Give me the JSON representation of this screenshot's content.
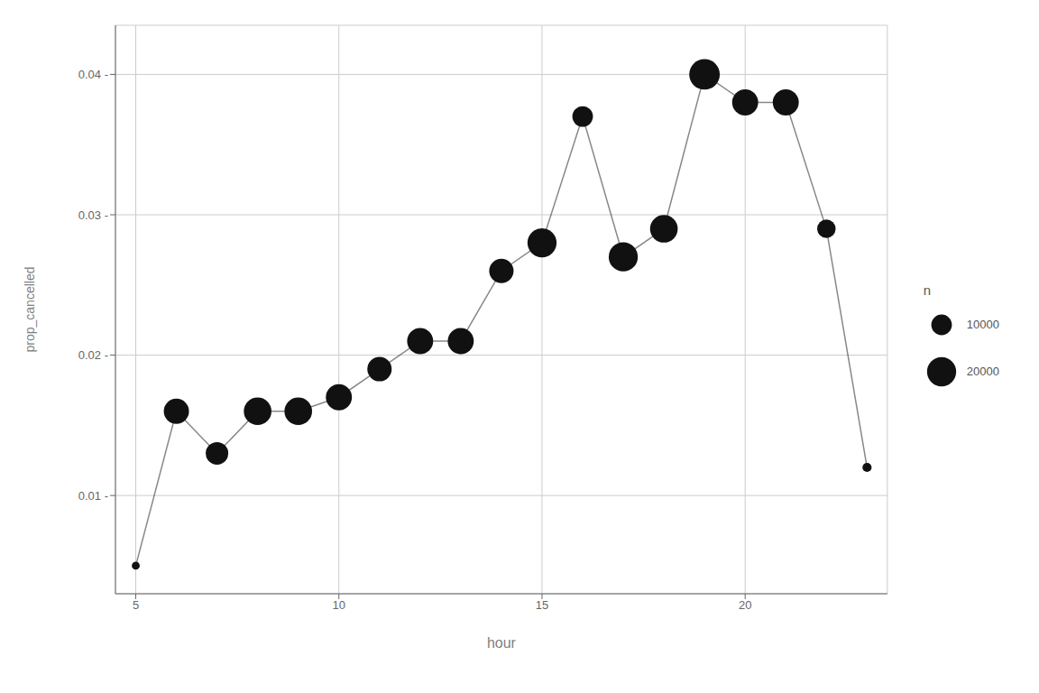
{
  "chart_data": {
    "type": "line",
    "marker": "circle",
    "x": [
      5,
      6,
      7,
      8,
      9,
      10,
      11,
      12,
      13,
      14,
      15,
      16,
      17,
      18,
      19,
      20,
      21,
      22,
      23
    ],
    "values": [
      0.005,
      0.016,
      0.013,
      0.016,
      0.016,
      0.017,
      0.019,
      0.021,
      0.021,
      0.026,
      0.028,
      0.037,
      0.027,
      0.029,
      0.04,
      0.038,
      0.038,
      0.029,
      0.012
    ],
    "sizes": [
      1500,
      15000,
      12000,
      18000,
      18000,
      16000,
      14000,
      16000,
      16000,
      14000,
      20000,
      10000,
      20000,
      18000,
      22000,
      16000,
      16000,
      8000,
      2000
    ],
    "size_domain": [
      500,
      22000
    ],
    "size_legend": {
      "title": "n",
      "values": [
        10000,
        20000
      ]
    },
    "color": "#111111",
    "xlabel": "hour",
    "ylabel": "prop_cancelled",
    "xlim": [
      4.5,
      23.5
    ],
    "ylim": [
      0.003,
      0.0435
    ],
    "xticks": [
      5,
      10,
      15,
      20
    ],
    "yticks": [
      {
        "value": 0.01,
        "label": "0.01 -"
      },
      {
        "value": 0.02,
        "label": "0.02 -"
      },
      {
        "value": 0.03,
        "label": "0.03 -"
      },
      {
        "value": 0.04,
        "label": "0.04 -"
      }
    ],
    "grid": true,
    "legend": "right"
  }
}
